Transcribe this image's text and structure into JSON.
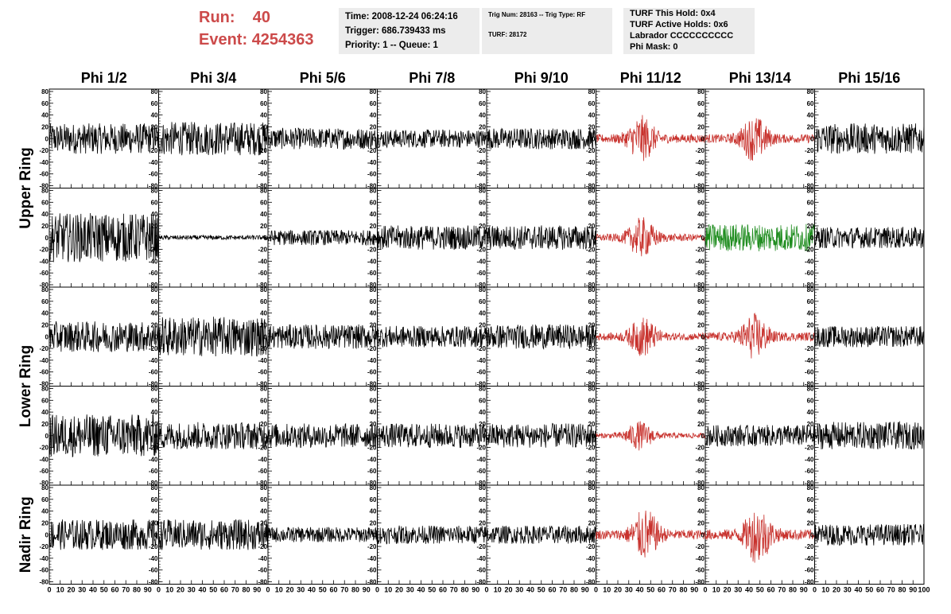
{
  "header": {
    "run_label": "Run:",
    "run_value": "40",
    "event_label": "Event:",
    "event_value": "4254363"
  },
  "info_box_1": {
    "time": "Time: 2008-12-24 06:24:16",
    "trigger": "Trigger: 686.739433 ms",
    "priority": "Priority: 1 -- Queue: 1"
  },
  "info_box_2": {
    "trig": "Trig Num: 28163 -- Trig Type: RF",
    "turf": "TURF: 28172"
  },
  "info_box_3": {
    "this_hold": "TURF This Hold: 0x4",
    "active_holds": "TURF Active Holds: 0x6",
    "labrador": "Labrador CCCCCCCCCC",
    "phi_mask": "Phi Mask: 0"
  },
  "colors": {
    "normal_trace": "#000000",
    "triggered_trace": "#c8322d",
    "highlight_trace": "#1e8c1e",
    "header_red": "#cc4a4a",
    "info_bg": "#ececec"
  },
  "chart_data": {
    "type": "line",
    "description_axes": "waveform grid",
    "columns": [
      "Phi 1/2",
      "Phi 3/4",
      "Phi 5/6",
      "Phi 7/8",
      "Phi 9/10",
      "Phi 11/12",
      "Phi 13/14",
      "Phi 15/16"
    ],
    "row_groups": [
      "Upper Ring",
      "Lower Ring",
      "Nadir Ring"
    ],
    "rows": 5,
    "ylim": [
      -80,
      80
    ],
    "y_ticks": [
      80,
      60,
      40,
      20,
      0,
      -20,
      -40,
      -60,
      -80
    ],
    "xlim": [
      0,
      100
    ],
    "x_ticks": [
      0,
      10,
      20,
      30,
      40,
      50,
      60,
      70,
      80,
      90,
      100
    ],
    "x_tick_labels": [
      "0",
      "10",
      "20",
      "30",
      "40",
      "50",
      "60",
      "70",
      "80",
      "90",
      "100"
    ],
    "panels": [
      [
        {
          "color": "normal",
          "amp": 20,
          "burst": 0
        },
        {
          "color": "normal",
          "amp": 22,
          "burst": 0
        },
        {
          "color": "normal",
          "amp": 14,
          "burst": 0
        },
        {
          "color": "normal",
          "amp": 12,
          "burst": 0
        },
        {
          "color": "normal",
          "amp": 14,
          "burst": 0
        },
        {
          "color": "triggered",
          "amp": 16,
          "burst": 42
        },
        {
          "color": "triggered",
          "amp": 16,
          "burst": 45
        },
        {
          "color": "normal",
          "amp": 20,
          "burst": 0
        }
      ],
      [
        {
          "color": "normal",
          "amp": 32,
          "burst": 0
        },
        {
          "color": "normal",
          "amp": 3,
          "burst": 0
        },
        {
          "color": "normal",
          "amp": 10,
          "burst": 0
        },
        {
          "color": "normal",
          "amp": 16,
          "burst": 0
        },
        {
          "color": "normal",
          "amp": 16,
          "burst": 0
        },
        {
          "color": "triggered",
          "amp": 14,
          "burst": 42
        },
        {
          "color": "highlight",
          "amp": 18,
          "burst": 0
        },
        {
          "color": "normal",
          "amp": 14,
          "burst": 0
        }
      ],
      [
        {
          "color": "normal",
          "amp": 20,
          "burst": 0
        },
        {
          "color": "normal",
          "amp": 26,
          "burst": 0
        },
        {
          "color": "normal",
          "amp": 16,
          "burst": 0
        },
        {
          "color": "normal",
          "amp": 14,
          "burst": 0
        },
        {
          "color": "normal",
          "amp": 16,
          "burst": 0
        },
        {
          "color": "triggered",
          "amp": 14,
          "burst": 43
        },
        {
          "color": "triggered",
          "amp": 16,
          "burst": 45
        },
        {
          "color": "normal",
          "amp": 14,
          "burst": 0
        }
      ],
      [
        {
          "color": "normal",
          "amp": 28,
          "burst": 0
        },
        {
          "color": "normal",
          "amp": 18,
          "burst": 0
        },
        {
          "color": "normal",
          "amp": 16,
          "burst": 0
        },
        {
          "color": "normal",
          "amp": 16,
          "burst": 0
        },
        {
          "color": "normal",
          "amp": 16,
          "burst": 0
        },
        {
          "color": "triggered",
          "amp": 10,
          "burst": 40
        },
        {
          "color": "normal",
          "amp": 14,
          "burst": 0
        },
        {
          "color": "normal",
          "amp": 18,
          "burst": 0
        }
      ],
      [
        {
          "color": "normal",
          "amp": 20,
          "burst": 0
        },
        {
          "color": "normal",
          "amp": 20,
          "burst": 0
        },
        {
          "color": "normal",
          "amp": 10,
          "burst": 0
        },
        {
          "color": "normal",
          "amp": 12,
          "burst": 0
        },
        {
          "color": "normal",
          "amp": 12,
          "burst": 0
        },
        {
          "color": "triggered",
          "amp": 18,
          "burst": 45
        },
        {
          "color": "triggered",
          "amp": 20,
          "burst": 48
        },
        {
          "color": "normal",
          "amp": 14,
          "burst": 0
        }
      ]
    ]
  }
}
